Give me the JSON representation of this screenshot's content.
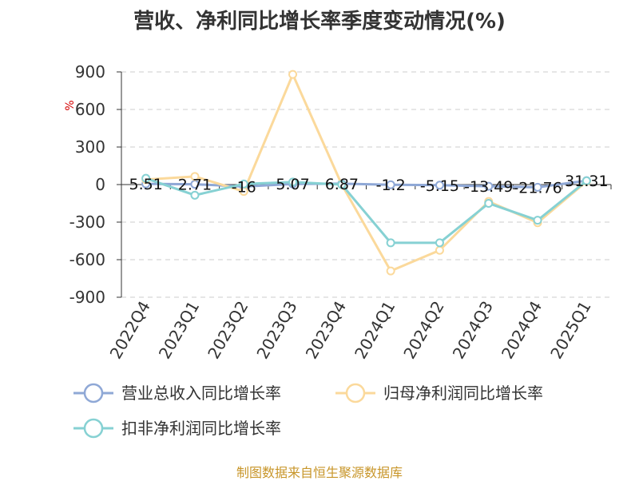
{
  "title": "营收、净利同比增长率季度变动情况(%)",
  "footer": "制图数据来自恒生聚源数据库",
  "chart_data": {
    "type": "line",
    "unit": "%",
    "categories": [
      "2022Q4",
      "2023Q1",
      "2023Q2",
      "2023Q3",
      "2023Q4",
      "2024Q1",
      "2024Q2",
      "2024Q3",
      "2024Q4",
      "2025Q1"
    ],
    "ylim": [
      -900,
      900
    ],
    "yticks": [
      900,
      600,
      300,
      0,
      -300,
      -600,
      -900
    ],
    "ytick_labels": [
      "900",
      "600",
      "300",
      "0",
      "-300",
      "-600",
      "-900"
    ],
    "grid": true,
    "legend_position": "bottom",
    "series": [
      {
        "name": "营业总收入同比增长率",
        "color": "#8fa8d6",
        "values": [
          5.51,
          2.71,
          -16,
          5.07,
          6.87,
          -1.2,
          -5.15,
          -13.49,
          -21.76,
          31.31
        ],
        "labels": [
          "5.51",
          "2.71",
          "-16",
          "5.07",
          "6.87",
          "-1.2",
          "-5.15",
          "-13.49",
          "-21.76",
          "31.31"
        ]
      },
      {
        "name": "归母净利润同比增长率",
        "color": "#fbd99b",
        "values": [
          40,
          65,
          -55,
          880,
          0,
          -690,
          -525,
          -135,
          -305,
          25
        ]
      },
      {
        "name": "扣非净利润同比增长率",
        "color": "#86d1d3",
        "values": [
          50,
          -85,
          5,
          20,
          0,
          -465,
          -465,
          -150,
          -285,
          30
        ]
      }
    ]
  }
}
